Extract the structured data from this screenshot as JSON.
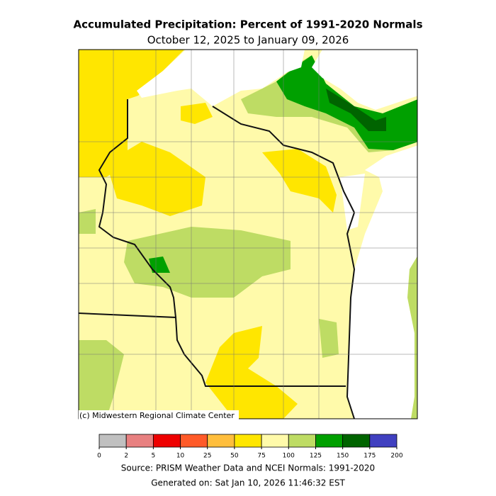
{
  "title": "Accumulated Precipitation: Percent of 1991-2020 Normals",
  "subtitle": "October 12, 2025 to January 09, 2026",
  "credit": "(c) Midwestern Regional Climate Center",
  "legend": {
    "ticks": [
      0,
      2,
      5,
      10,
      25,
      50,
      75,
      100,
      125,
      150,
      175,
      200
    ],
    "colors": [
      "#c0c0c0",
      "#e88080",
      "#ee0000",
      "#ff5a28",
      "#ffbe3c",
      "#ffe600",
      "#fffaaa",
      "#bedc64",
      "#00a000",
      "#006400",
      "#4040c0"
    ]
  },
  "source": "Source: PRISM Weather Data and NCEI Normals: 1991-2020",
  "generated": "Generated on: Sat Jan 10, 2026 11:46:32 EST"
}
